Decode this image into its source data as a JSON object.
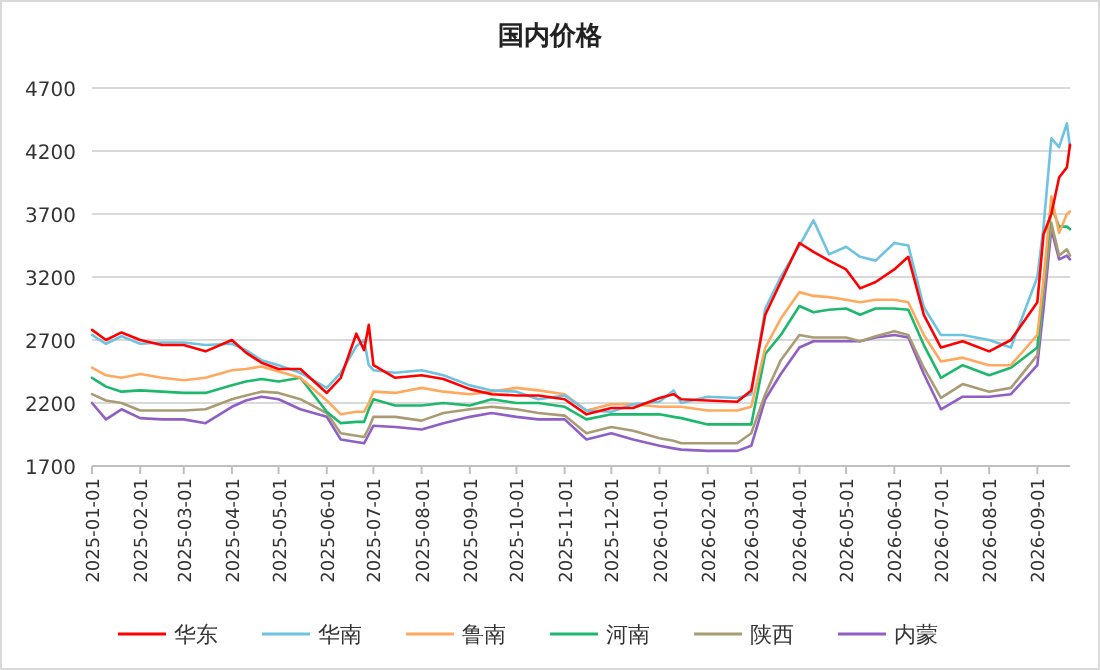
{
  "chart_data": {
    "type": "line",
    "title": "国内价格",
    "x": [
      "2025-01-01",
      "2025-01-10",
      "2025-01-20",
      "2025-02-01",
      "2025-02-15",
      "2025-03-01",
      "2025-03-15",
      "2025-04-01",
      "2025-04-10",
      "2025-04-20",
      "2025-05-01",
      "2025-05-15",
      "2025-06-01",
      "2025-06-10",
      "2025-06-20",
      "2025-06-25",
      "2025-06-28",
      "2025-07-01",
      "2025-07-15",
      "2025-08-01",
      "2025-08-15",
      "2025-09-01",
      "2025-09-15",
      "2025-10-01",
      "2025-10-15",
      "2025-11-01",
      "2025-11-15",
      "2025-12-01",
      "2025-12-15",
      "2026-01-01",
      "2026-01-10",
      "2026-01-15",
      "2026-02-01",
      "2026-02-20",
      "2026-03-01",
      "2026-03-10",
      "2026-03-20",
      "2026-04-01",
      "2026-04-10",
      "2026-04-20",
      "2026-05-01",
      "2026-05-10",
      "2026-05-20",
      "2026-06-01",
      "2026-06-10",
      "2026-06-20",
      "2026-07-01",
      "2026-07-15",
      "2026-08-01",
      "2026-08-15",
      "2026-09-01",
      "2026-09-05",
      "2026-09-10",
      "2026-09-15",
      "2026-09-20",
      "2026-09-22"
    ],
    "series": [
      {
        "name": "华东",
        "color": "#ff0000",
        "values": [
          2780,
          2700,
          2760,
          2700,
          2660,
          2660,
          2610,
          2700,
          2600,
          2520,
          2470,
          2470,
          2280,
          2400,
          2750,
          2620,
          2820,
          2500,
          2400,
          2420,
          2390,
          2310,
          2270,
          2260,
          2260,
          2230,
          2110,
          2160,
          2160,
          2240,
          2270,
          2230,
          2220,
          2210,
          2300,
          2900,
          3160,
          3470,
          3400,
          3330,
          3260,
          3110,
          3160,
          3260,
          3360,
          2900,
          2640,
          2690,
          2610,
          2700,
          3000,
          3540,
          3700,
          3990,
          4070,
          4250
        ]
      },
      {
        "name": "华南",
        "color": "#6fc3e0",
        "values": [
          2740,
          2670,
          2730,
          2670,
          2680,
          2680,
          2660,
          2670,
          2620,
          2540,
          2500,
          2440,
          2320,
          2440,
          2650,
          2700,
          2500,
          2460,
          2440,
          2460,
          2420,
          2340,
          2300,
          2290,
          2230,
          2260,
          2140,
          2130,
          2190,
          2210,
          2300,
          2200,
          2250,
          2240,
          2270,
          2950,
          3200,
          3450,
          3650,
          3380,
          3440,
          3360,
          3330,
          3470,
          3450,
          2960,
          2740,
          2740,
          2700,
          2640,
          3200,
          3600,
          4300,
          4230,
          4420,
          4230
        ]
      },
      {
        "name": "鲁南",
        "color": "#ffa95e",
        "values": [
          2480,
          2420,
          2400,
          2430,
          2400,
          2380,
          2400,
          2460,
          2470,
          2490,
          2450,
          2400,
          2220,
          2110,
          2130,
          2130,
          2200,
          2290,
          2280,
          2320,
          2290,
          2270,
          2290,
          2320,
          2300,
          2270,
          2140,
          2190,
          2190,
          2170,
          2170,
          2170,
          2140,
          2140,
          2170,
          2640,
          2870,
          3080,
          3050,
          3040,
          3020,
          3000,
          3020,
          3020,
          3000,
          2740,
          2530,
          2560,
          2500,
          2500,
          2740,
          3180,
          3840,
          3550,
          3700,
          3720
        ]
      },
      {
        "name": "河南",
        "color": "#1db86b",
        "values": [
          2400,
          2330,
          2290,
          2300,
          2290,
          2280,
          2280,
          2340,
          2370,
          2390,
          2370,
          2400,
          2130,
          2040,
          2050,
          2050,
          2150,
          2230,
          2180,
          2180,
          2200,
          2180,
          2230,
          2200,
          2200,
          2170,
          2070,
          2110,
          2110,
          2110,
          2090,
          2080,
          2030,
          2030,
          2030,
          2590,
          2740,
          2970,
          2920,
          2940,
          2950,
          2900,
          2950,
          2950,
          2940,
          2660,
          2400,
          2500,
          2420,
          2480,
          2640,
          3160,
          3760,
          3600,
          3600,
          3580
        ]
      },
      {
        "name": "陕西",
        "color": "#a99c74",
        "values": [
          2270,
          2220,
          2200,
          2140,
          2140,
          2140,
          2150,
          2230,
          2260,
          2290,
          2280,
          2230,
          2120,
          1960,
          1940,
          1930,
          2000,
          2090,
          2090,
          2060,
          2120,
          2150,
          2170,
          2150,
          2120,
          2100,
          1960,
          2010,
          1980,
          1920,
          1900,
          1880,
          1880,
          1880,
          1960,
          2270,
          2540,
          2740,
          2720,
          2720,
          2720,
          2690,
          2730,
          2770,
          2740,
          2480,
          2240,
          2350,
          2290,
          2320,
          2580,
          3080,
          3630,
          3370,
          3420,
          3370
        ]
      },
      {
        "name": "内蒙",
        "color": "#8f5fc6",
        "values": [
          2200,
          2070,
          2150,
          2080,
          2070,
          2070,
          2040,
          2170,
          2220,
          2250,
          2230,
          2150,
          2090,
          1910,
          1890,
          1880,
          1950,
          2020,
          2010,
          1990,
          2040,
          2090,
          2120,
          2090,
          2070,
          2070,
          1910,
          1960,
          1910,
          1860,
          1840,
          1830,
          1820,
          1820,
          1860,
          2230,
          2430,
          2640,
          2690,
          2690,
          2690,
          2690,
          2720,
          2740,
          2720,
          2430,
          2150,
          2250,
          2250,
          2270,
          2500,
          2950,
          3580,
          3340,
          3370,
          3340
        ]
      }
    ],
    "xlim": [
      "2025-01-01",
      "2026-09-22"
    ],
    "xticks": [
      "2025-01-01",
      "2025-02-01",
      "2025-03-01",
      "2025-04-01",
      "2025-05-01",
      "2025-06-01",
      "2025-07-01",
      "2025-08-01",
      "2025-09-01",
      "2025-10-01",
      "2025-11-01",
      "2025-12-01",
      "2026-01-01",
      "2026-02-01",
      "2026-03-01",
      "2026-04-01",
      "2026-05-01",
      "2026-06-01",
      "2026-07-01",
      "2026-08-01",
      "2026-09-01"
    ],
    "ylim": [
      1700,
      4700
    ],
    "yticks": [
      1700,
      2200,
      2700,
      3200,
      3700,
      4200,
      4700
    ],
    "grid": "y",
    "legend": "bottom",
    "marker": "none",
    "line_style": "solid"
  }
}
